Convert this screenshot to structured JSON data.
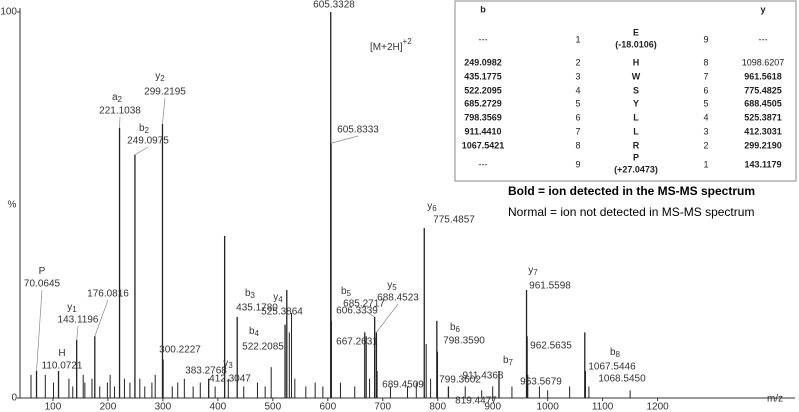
{
  "chart_data": {
    "type": "spectrum",
    "x_label": "m/z",
    "y_label": "%",
    "xlim": [
      40,
      1450
    ],
    "xticks": [
      100,
      200,
      300,
      400,
      500,
      600,
      700,
      800,
      900,
      1000,
      1100,
      1200
    ],
    "ylim": [
      0,
      100
    ],
    "yticks": [
      0,
      100
    ],
    "color": "#222222",
    "annotation": "[M+2H]",
    "annotation_sup": "+2",
    "peaks": [
      {
        "mz": 70.0645,
        "label": "70.0645",
        "ion": "P",
        "intensity": 7
      },
      {
        "mz": 110.0721,
        "label": "110.0721",
        "ion": "H",
        "intensity": 7
      },
      {
        "mz": 143.1196,
        "label": "143.1196",
        "ion": "y",
        "sub": "1",
        "intensity": 15
      },
      {
        "mz": 176.0816,
        "label": "176.0816",
        "intensity": 16
      },
      {
        "mz": 221.1038,
        "label": "221.1038",
        "ion": "a",
        "sub": "2",
        "intensity": 70
      },
      {
        "mz": 249.0975,
        "label": "249.0975",
        "ion": "b",
        "sub": "2",
        "intensity": 63
      },
      {
        "mz": 299.2195,
        "label": "299.2195",
        "ion": "y",
        "sub": "2",
        "intensity": 71
      },
      {
        "mz": 300.2227,
        "label": "300.2227",
        "intensity": 10
      },
      {
        "mz": 383.2768,
        "label": "383.2768",
        "intensity": 5
      },
      {
        "mz": 412.3047,
        "label": "412.3047",
        "ion": "y",
        "sub": "3",
        "intensity": 42
      },
      {
        "mz": 435.178,
        "label": "435.1780",
        "ion": "b",
        "sub": "3",
        "intensity": 21
      },
      {
        "mz": 522.2085,
        "label": "522.2085",
        "ion": "b",
        "sub": "4",
        "intensity": 19
      },
      {
        "mz": 525.3864,
        "label": "525.3864",
        "ion": "y",
        "sub": "4",
        "intensity": 28
      },
      {
        "mz": 605.3328,
        "label": "605.3328",
        "intensity": 100
      },
      {
        "mz": 605.8333,
        "label": "605.8333",
        "intensity": 66
      },
      {
        "mz": 606.3339,
        "label": "606.3339",
        "intensity": 20
      },
      {
        "mz": 667.2631,
        "label": "667.2631",
        "intensity": 17
      },
      {
        "mz": 685.2717,
        "label": "685.2717",
        "ion": "b",
        "sub": "5",
        "intensity": 21
      },
      {
        "mz": 688.4523,
        "label": "688.4523",
        "ion": "y",
        "sub": "5",
        "intensity": 17
      },
      {
        "mz": 689.4509,
        "label": "689.4509",
        "intensity": 7
      },
      {
        "mz": 775.4857,
        "label": "775.4857",
        "ion": "y",
        "sub": "6",
        "intensity": 44
      },
      {
        "mz": 798.359,
        "label": "798.3590",
        "ion": "b",
        "sub": "6",
        "intensity": 20
      },
      {
        "mz": 799.3602,
        "label": "799.3602",
        "intensity": 12
      },
      {
        "mz": 819.4477,
        "label": "819.4477",
        "intensity": 3
      },
      {
        "mz": 911.4368,
        "label": "911.4368",
        "ion": "b",
        "sub": "7",
        "intensity": 7
      },
      {
        "mz": 961.5598,
        "label": "961.5598",
        "ion": "y",
        "sub": "7",
        "intensity": 28
      },
      {
        "mz": 962.5635,
        "label": "962.5635",
        "intensity": 16
      },
      {
        "mz": 963.5679,
        "label": "963.5679",
        "intensity": 6
      },
      {
        "mz": 1067.5446,
        "label": "1067.5446",
        "ion": "b",
        "sub": "8",
        "intensity": 17
      },
      {
        "mz": 1068.545,
        "label": "1068.5450",
        "intensity": 7
      }
    ],
    "minor_peaks": {
      "mz": [
        60,
        86,
        101,
        129,
        136,
        155,
        158,
        171,
        185,
        199,
        204,
        212,
        230,
        240,
        258,
        267,
        280,
        286,
        317,
        327,
        339,
        355,
        368,
        395,
        419,
        447,
        472,
        486,
        497,
        530,
        534,
        540,
        560,
        577,
        591,
        623,
        649,
        670,
        676,
        714,
        745,
        761,
        779,
        787,
        850,
        880,
        900,
        935,
        985,
        1000,
        1040,
        1075,
        1150
      ],
      "intensity": [
        6,
        6,
        4,
        5,
        3,
        6,
        4,
        5,
        3,
        4,
        6,
        3,
        5,
        4,
        5,
        3,
        4,
        6,
        3,
        4,
        5,
        3,
        4,
        3,
        5,
        3,
        4,
        3,
        8,
        17,
        22,
        5,
        3,
        4,
        3,
        4,
        3,
        16,
        5,
        3,
        3,
        4,
        14,
        5,
        3,
        2,
        3,
        3,
        3,
        2,
        3,
        3,
        2
      ]
    }
  },
  "table": {
    "header": [
      "b",
      "y"
    ],
    "rows": [
      {
        "b": "---",
        "n": "1",
        "residue": "E",
        "mod": "(-18.0106)",
        "m": "9",
        "y": "---",
        "b_detected": false,
        "y_detected": false
      },
      {
        "b": "249.0982",
        "n": "2",
        "residue": "H",
        "m": "8",
        "y": "1098.6207",
        "b_detected": true,
        "y_detected": false
      },
      {
        "b": "435.1775",
        "n": "3",
        "residue": "W",
        "m": "7",
        "y": "961.5618",
        "b_detected": true,
        "y_detected": true
      },
      {
        "b": "522.2095",
        "n": "4",
        "residue": "S",
        "m": "6",
        "y": "775.4825",
        "b_detected": true,
        "y_detected": true
      },
      {
        "b": "685.2729",
        "n": "5",
        "residue": "Y",
        "m": "5",
        "y": "688.4505",
        "b_detected": true,
        "y_detected": true
      },
      {
        "b": "798.3569",
        "n": "6",
        "residue": "L",
        "m": "4",
        "y": "525.3871",
        "b_detected": true,
        "y_detected": true
      },
      {
        "b": "911.4410",
        "n": "7",
        "residue": "L",
        "m": "3",
        "y": "412.3031",
        "b_detected": true,
        "y_detected": true
      },
      {
        "b": "1067.5421",
        "n": "8",
        "residue": "R",
        "m": "2",
        "y": "299.2190",
        "b_detected": true,
        "y_detected": true
      },
      {
        "b": "---",
        "n": "9",
        "residue": "P",
        "mod": "(+27.0473)",
        "m": "1",
        "y": "143.1179",
        "b_detected": false,
        "y_detected": true
      }
    ]
  },
  "legend": {
    "bold": "Bold = ion detected in the MS-MS spectrum",
    "normal": "Normal = ion not detected in MS-MS spectrum"
  }
}
